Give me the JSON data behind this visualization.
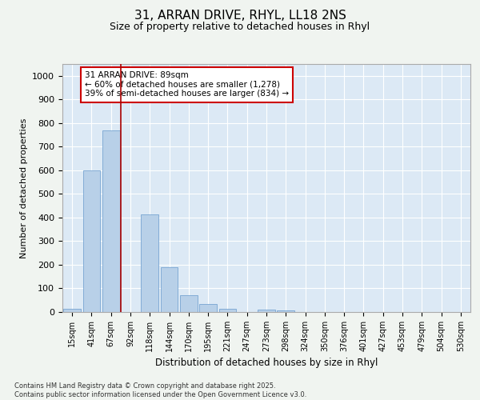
{
  "title": "31, ARRAN DRIVE, RHYL, LL18 2NS",
  "subtitle": "Size of property relative to detached houses in Rhyl",
  "xlabel": "Distribution of detached houses by size in Rhyl",
  "ylabel": "Number of detached properties",
  "categories": [
    "15sqm",
    "41sqm",
    "67sqm",
    "92sqm",
    "118sqm",
    "144sqm",
    "170sqm",
    "195sqm",
    "221sqm",
    "247sqm",
    "273sqm",
    "298sqm",
    "324sqm",
    "350sqm",
    "376sqm",
    "401sqm",
    "427sqm",
    "453sqm",
    "479sqm",
    "504sqm",
    "530sqm"
  ],
  "values": [
    13,
    600,
    770,
    0,
    413,
    190,
    70,
    35,
    13,
    0,
    10,
    8,
    0,
    0,
    0,
    0,
    0,
    0,
    0,
    0,
    0
  ],
  "bar_color": "#b8d0e8",
  "bar_edge_color": "#6699cc",
  "background_color": "#dce9f5",
  "grid_color": "#ffffff",
  "vline_color": "#aa0000",
  "vline_xidx": 2.5,
  "annotation_text": "31 ARRAN DRIVE: 89sqm\n← 60% of detached houses are smaller (1,278)\n39% of semi-detached houses are larger (834) →",
  "annotation_box_color": "#ffffff",
  "annotation_box_edge_color": "#cc0000",
  "footer_text": "Contains HM Land Registry data © Crown copyright and database right 2025.\nContains public sector information licensed under the Open Government Licence v3.0.",
  "fig_background": "#f0f4f0",
  "ylim": [
    0,
    1050
  ],
  "yticks": [
    0,
    100,
    200,
    300,
    400,
    500,
    600,
    700,
    800,
    900,
    1000
  ]
}
